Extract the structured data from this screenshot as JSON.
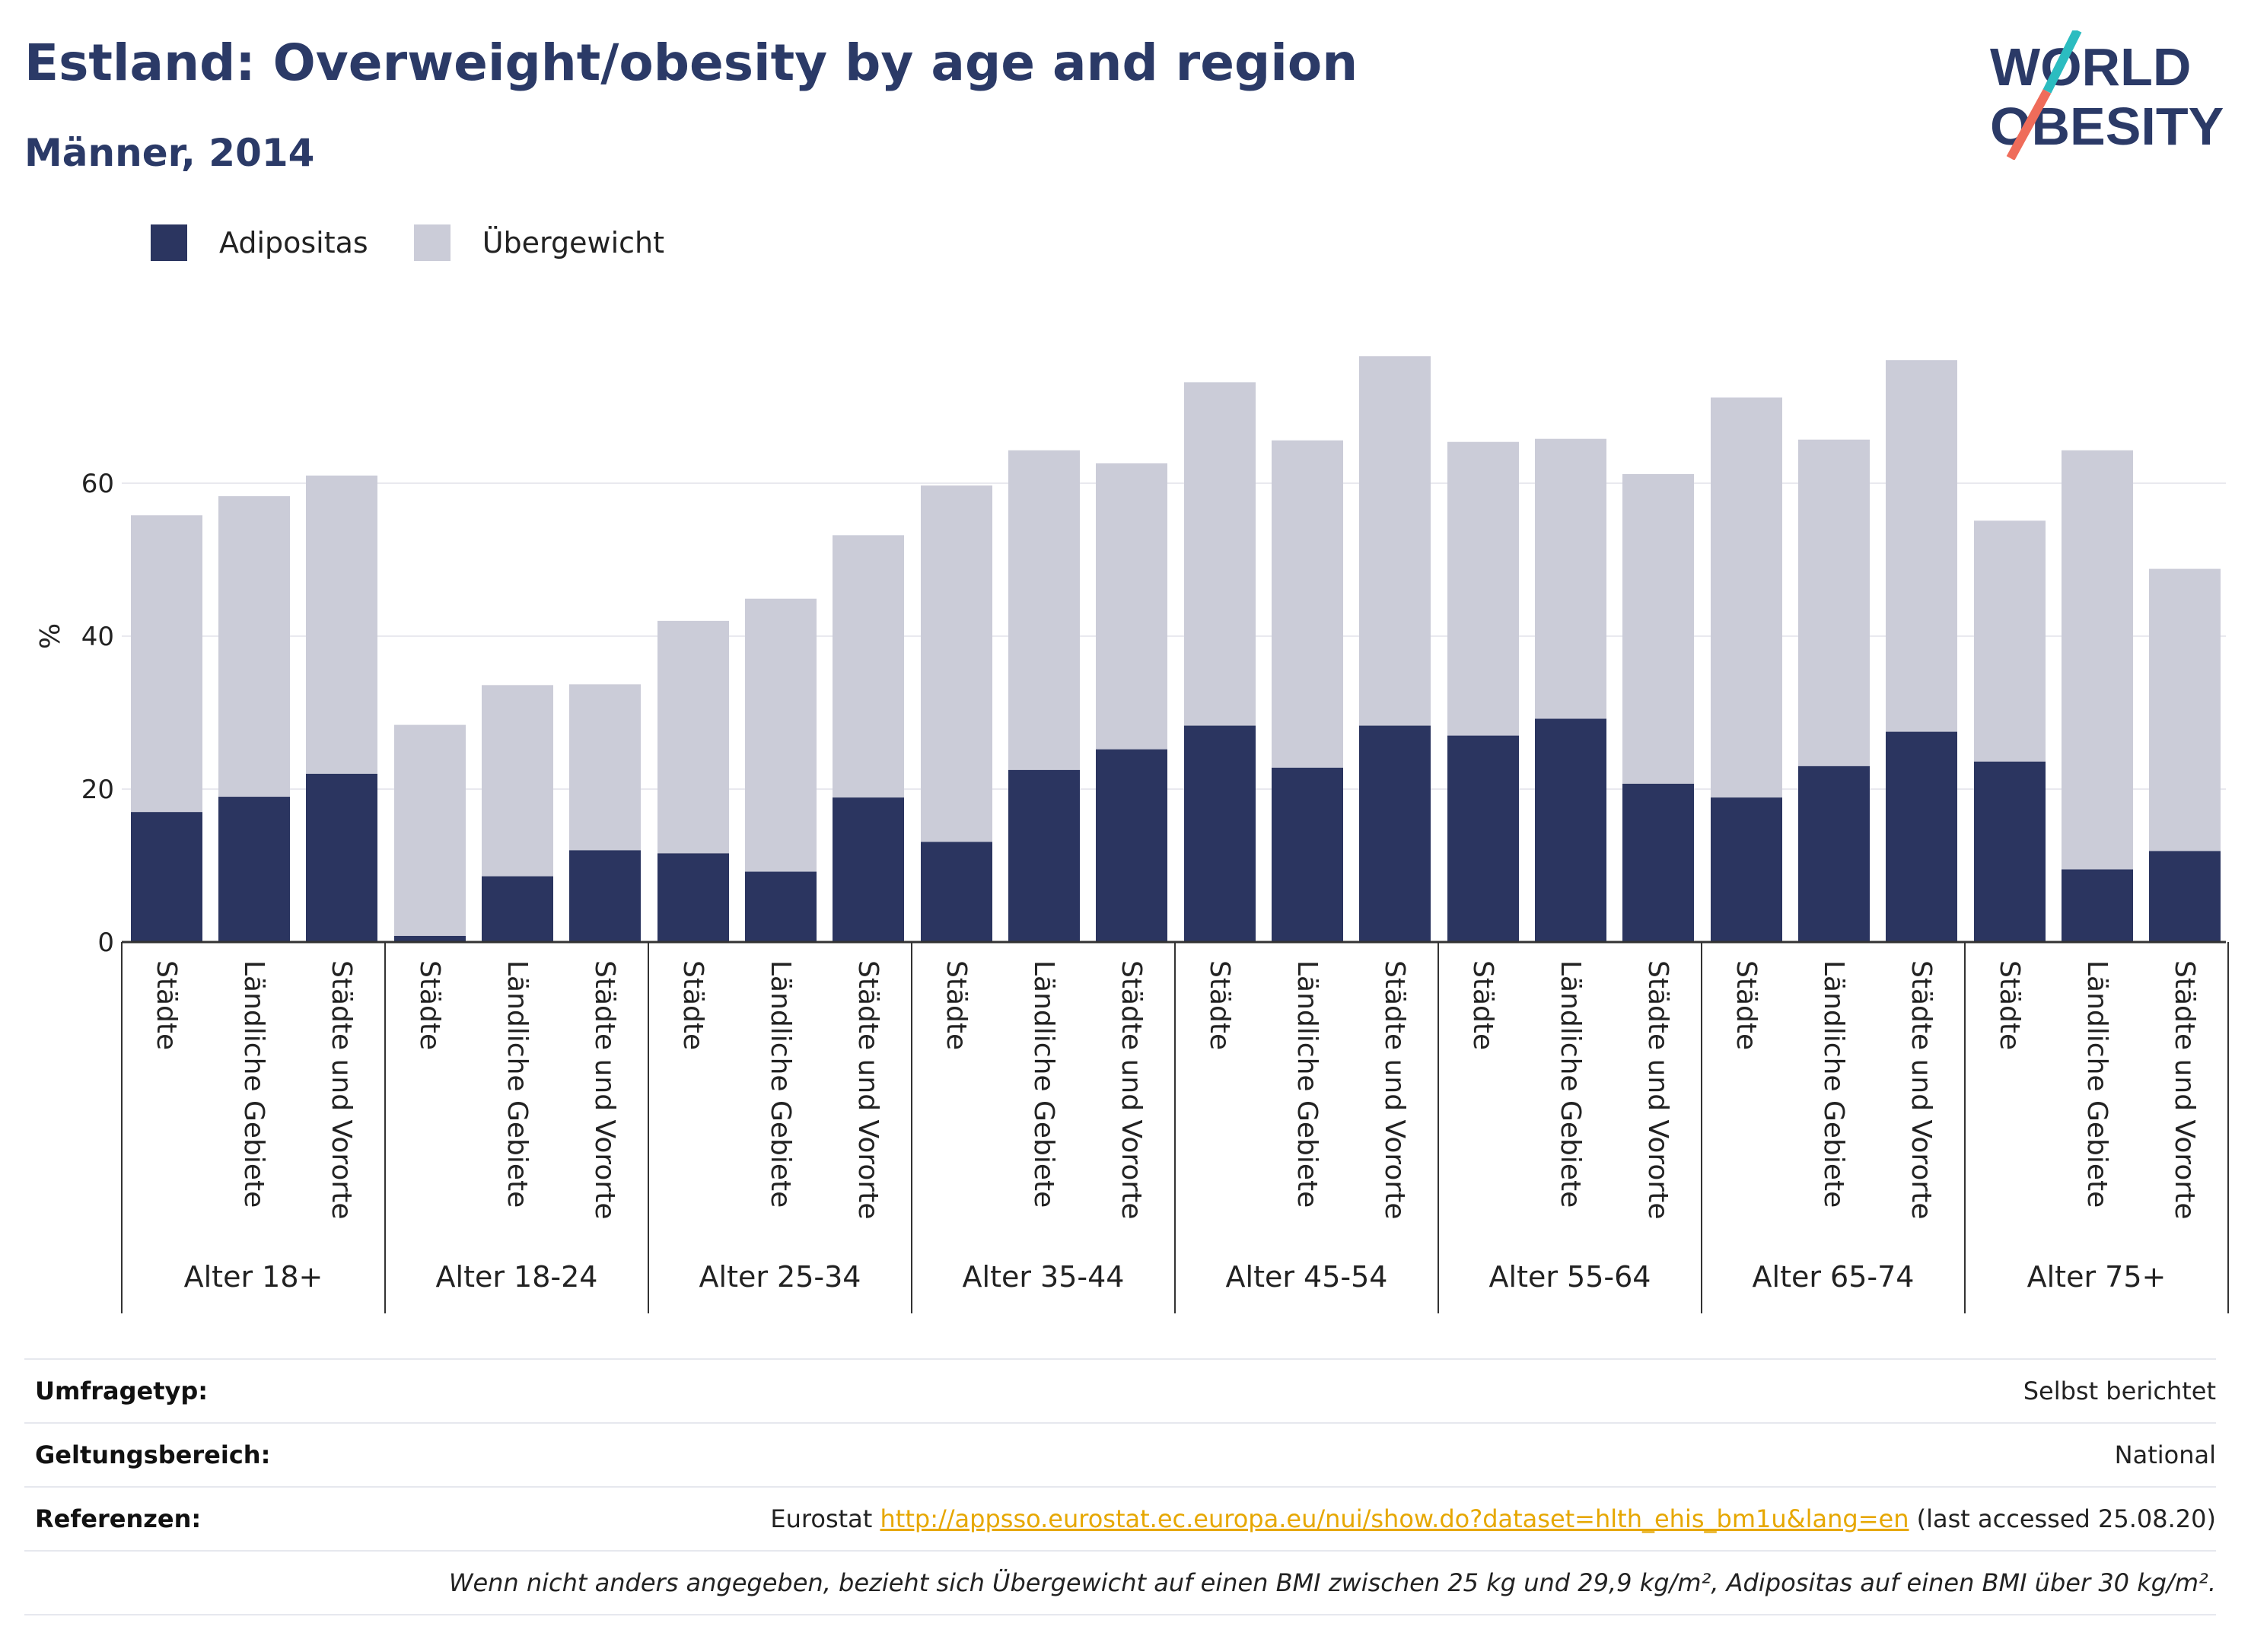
{
  "header": {
    "title": "Estland: Overweight/obesity by age and region",
    "subtitle": "Männer, 2014"
  },
  "logo": {
    "line1": "WORLD",
    "line2": "OBESITY",
    "accent_teal": "#2bbcc0",
    "accent_coral": "#ef6c5a",
    "text_color": "#2b3a67"
  },
  "colors": {
    "obesity": "#2b3560",
    "overweight": "#cbccd8",
    "axis": "#333333",
    "grid": "#e9e9ef"
  },
  "chart_data": {
    "type": "bar",
    "stacked": true,
    "ylabel": "%",
    "ylim": [
      0,
      80
    ],
    "yticks": [
      0,
      20,
      40,
      60
    ],
    "grid": true,
    "legend_position": "top-left",
    "series_names": [
      "Adipositas",
      "Übergewicht"
    ],
    "groups": [
      {
        "label": "Alter 18+",
        "categories": [
          "Städte",
          "Ländliche Gebiete",
          "Städte und Vororte"
        ],
        "obesity": [
          17.0,
          19.0,
          22.0
        ],
        "total": [
          55.8,
          58.3,
          61.0
        ]
      },
      {
        "label": "Alter 18-24",
        "categories": [
          "Städte",
          "Ländliche Gebiete",
          "Städte und Vororte"
        ],
        "obesity": [
          0.8,
          8.6,
          12.0
        ],
        "total": [
          28.4,
          33.6,
          33.7
        ]
      },
      {
        "label": "Alter 25-34",
        "categories": [
          "Städte",
          "Ländliche Gebiete",
          "Städte und Vororte"
        ],
        "obesity": [
          11.6,
          9.2,
          18.9
        ],
        "total": [
          42.0,
          44.9,
          53.2
        ]
      },
      {
        "label": "Alter 35-44",
        "categories": [
          "Städte",
          "Ländliche Gebiete",
          "Städte und Vororte"
        ],
        "obesity": [
          13.1,
          22.5,
          25.2
        ],
        "total": [
          59.7,
          64.3,
          62.6
        ]
      },
      {
        "label": "Alter 45-54",
        "categories": [
          "Städte",
          "Ländliche Gebiete",
          "Städte und Vororte"
        ],
        "obesity": [
          28.3,
          22.8,
          28.3
        ],
        "total": [
          73.2,
          65.6,
          76.6
        ]
      },
      {
        "label": "Alter 55-64",
        "categories": [
          "Städte",
          "Ländliche Gebiete",
          "Städte und Vororte"
        ],
        "obesity": [
          27.0,
          29.2,
          20.7
        ],
        "total": [
          65.4,
          65.8,
          61.2
        ]
      },
      {
        "label": "Alter 65-74",
        "categories": [
          "Städte",
          "Ländliche Gebiete",
          "Städte und Vororte"
        ],
        "obesity": [
          18.9,
          23.0,
          27.5
        ],
        "total": [
          71.2,
          65.7,
          76.1
        ]
      },
      {
        "label": "Alter 75+",
        "categories": [
          "Städte",
          "Ländliche Gebiete",
          "Städte und Vororte"
        ],
        "obesity": [
          23.6,
          9.5,
          11.9
        ],
        "total": [
          55.1,
          64.3,
          48.8
        ]
      }
    ]
  },
  "info": {
    "survey_label": "Umfragetyp:",
    "survey_value": "Selbst berichtet",
    "scope_label": "Geltungsbereich:",
    "scope_value": "National",
    "refs_label": "Referenzen:",
    "refs_prefix": "Eurostat",
    "refs_link": "http://appsso.eurostat.ec.europa.eu/nui/show.do?dataset=hlth_ehis_bm1u&lang=en",
    "refs_suffix": "(last accessed 25.08.20)",
    "note": "Wenn nicht anders angegeben, bezieht sich Übergewicht auf einen BMI zwischen 25 kg und 29,9 kg/m², Adipositas auf einen BMI über 30 kg/m²."
  }
}
